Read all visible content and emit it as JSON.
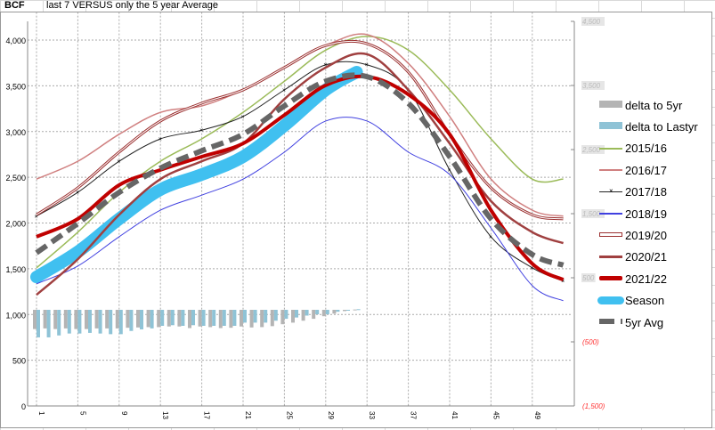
{
  "sheet": {
    "cell_a1": "BCF",
    "cell_b1": "last 7 VERSUS only the 5 year Average"
  },
  "chart_data": {
    "type": "line",
    "title": "",
    "x_ticks": [
      1,
      5,
      9,
      13,
      17,
      21,
      25,
      29,
      33,
      37,
      41,
      45,
      49
    ],
    "y_primary": {
      "min": 0,
      "max": 4000,
      "step": 500,
      "ticks": [
        "0",
        "500",
        "1,000",
        "1,500",
        "2,000",
        "2,500",
        "3,000",
        "3,500",
        "4,000"
      ]
    },
    "y_secondary": {
      "min": -1500,
      "max": 4500,
      "ticks": [
        {
          "v": 4500,
          "label": "4,500"
        },
        {
          "v": 3500,
          "label": "3,500"
        },
        {
          "v": 2500,
          "label": "2,500"
        },
        {
          "v": 1500,
          "label": "1,500"
        },
        {
          "v": 500,
          "label": "500"
        },
        {
          "v": -500,
          "label": "(500)"
        },
        {
          "v": -1500,
          "label": "(1,500)"
        }
      ]
    },
    "grid": true,
    "legend_placement": "right",
    "line_x": [
      1,
      5,
      9,
      13,
      17,
      21,
      25,
      29,
      33,
      37,
      41,
      45,
      49,
      52
    ],
    "series": [
      {
        "name": "2015/16",
        "color": "#9bbb59",
        "width": 1.5,
        "values": [
          1510,
          1900,
          2335,
          2675,
          2920,
          3210,
          3550,
          3890,
          4040,
          3890,
          3455,
          2920,
          2480,
          2480
        ]
      },
      {
        "name": "2016/17",
        "color": "#d08080",
        "width": 1.5,
        "values": [
          2480,
          2675,
          2970,
          3210,
          3280,
          3455,
          3700,
          3940,
          4060,
          3745,
          3165,
          2480,
          2140,
          2075
        ]
      },
      {
        "name": "2017/18",
        "color": "#222222",
        "width": 1,
        "marker": "x",
        "values": [
          2075,
          2335,
          2675,
          2920,
          3015,
          3165,
          3455,
          3730,
          3730,
          3455,
          2580,
          1850,
          1510,
          1365
        ]
      },
      {
        "name": "2018/19",
        "color": "#4040e0",
        "width": 1,
        "values": [
          1335,
          1530,
          1850,
          2140,
          2305,
          2480,
          2775,
          3115,
          3115,
          2775,
          2530,
          1945,
          1315,
          1150
        ]
      },
      {
        "name": "2019/20",
        "color": "#9b3030",
        "width": 3,
        "outline": true,
        "values": [
          2090,
          2385,
          2775,
          3115,
          3310,
          3455,
          3700,
          3940,
          3960,
          3650,
          2970,
          2385,
          2090,
          2045
        ]
      },
      {
        "name": "2020/21",
        "color": "#a04040",
        "width": 2.5,
        "values": [
          1215,
          1605,
          2090,
          2480,
          2675,
          2870,
          3355,
          3700,
          3845,
          3455,
          2870,
          2240,
          1900,
          1780
        ]
      },
      {
        "name": "2021/22",
        "color": "#c00000",
        "width": 4,
        "values": [
          1850,
          2045,
          2415,
          2580,
          2725,
          2870,
          3180,
          3505,
          3600,
          3405,
          2970,
          2140,
          1555,
          1380
        ]
      },
      {
        "name": "5yr Avg",
        "color": "#666666",
        "width": 6,
        "dash": true,
        "values": [
          1675,
          1995,
          2335,
          2600,
          2790,
          2970,
          3280,
          3550,
          3600,
          3310,
          2725,
          2045,
          1655,
          1540
        ]
      }
    ],
    "season": {
      "name": "Season",
      "color": "#40c0f0",
      "x": [
        1,
        5,
        9,
        13,
        17,
        21,
        25,
        29,
        32
      ],
      "values": [
        1410,
        1685,
        2045,
        2365,
        2530,
        2725,
        3065,
        3455,
        3650
      ]
    },
    "bars": {
      "axis": "secondary",
      "weeks": [
        1,
        2,
        3,
        4,
        5,
        6,
        7,
        8,
        9,
        10,
        11,
        12,
        13,
        14,
        15,
        16,
        17,
        18,
        19,
        20,
        21,
        22,
        23,
        24,
        25,
        26,
        27,
        28,
        29,
        30,
        31,
        32
      ],
      "series": [
        {
          "name": "delta to 5yr",
          "color": "#b4b4b4",
          "values": [
            -300,
            -290,
            -300,
            -290,
            -300,
            -300,
            -290,
            -290,
            -290,
            -280,
            -275,
            -270,
            -270,
            -260,
            -260,
            -285,
            -260,
            -270,
            -285,
            -280,
            -260,
            -275,
            -270,
            -255,
            -225,
            -200,
            -170,
            -140,
            -100,
            -60,
            -20,
            5
          ]
        },
        {
          "name": "delta to Lastyr",
          "color": "#8fc3d6",
          "values": [
            -430,
            -430,
            -400,
            -370,
            -370,
            -360,
            -370,
            -380,
            -380,
            -330,
            -305,
            -290,
            -250,
            -240,
            -250,
            -240,
            -250,
            -250,
            -250,
            -250,
            -200,
            -200,
            -200,
            -170,
            -140,
            -120,
            -90,
            -70,
            -70,
            -30,
            -5,
            10
          ]
        }
      ]
    }
  },
  "legend": [
    {
      "label": "delta to 5yr",
      "kind": "bar",
      "color": "#b4b4b4"
    },
    {
      "label": "delta to Lastyr",
      "kind": "bar",
      "color": "#8fc3d6"
    },
    {
      "label": "2015/16",
      "kind": "line",
      "color": "#9bbb59"
    },
    {
      "label": "2016/17",
      "kind": "line",
      "color": "#d08080"
    },
    {
      "label": "2017/18",
      "kind": "marker",
      "color": "#222222"
    },
    {
      "label": "2018/19",
      "kind": "line",
      "color": "#4040e0"
    },
    {
      "label": "2019/20",
      "kind": "outline",
      "color": "#9b3030"
    },
    {
      "label": "2020/21",
      "kind": "thick",
      "color": "#a04040"
    },
    {
      "label": "2021/22",
      "kind": "thicker",
      "color": "#c00000"
    },
    {
      "label": "Season",
      "kind": "season",
      "color": "#40c0f0"
    },
    {
      "label": "5yr Avg",
      "kind": "dash",
      "color": "#666666"
    }
  ]
}
